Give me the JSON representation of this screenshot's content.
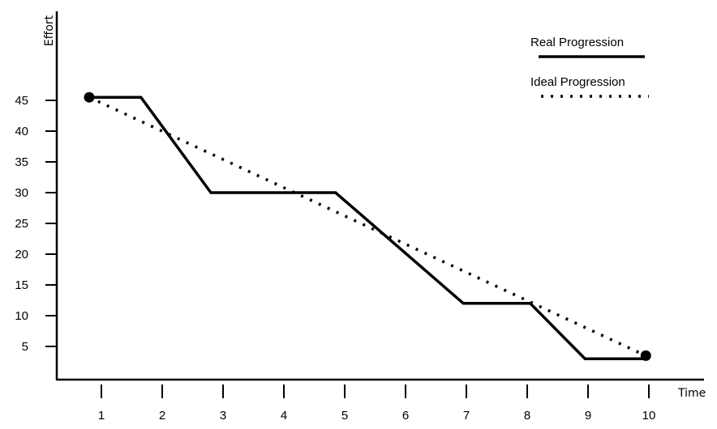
{
  "chart_data": {
    "type": "line",
    "xlabel": "Time",
    "ylabel": "Effort",
    "x_ticks": [
      1,
      2,
      3,
      4,
      5,
      6,
      7,
      8,
      9,
      10
    ],
    "y_ticks": [
      5,
      10,
      15,
      20,
      25,
      30,
      35,
      40,
      45
    ],
    "xlim": [
      0.4,
      10.9
    ],
    "ylim": [
      0,
      50
    ],
    "grid": false,
    "legend_position": "top-right",
    "series": [
      {
        "name": "Real Progression",
        "style": "solid",
        "x": [
          0.8,
          1.65,
          2.8,
          4.85,
          6.95,
          8.05,
          8.95,
          9.95
        ],
        "y": [
          45.5,
          45.5,
          30,
          30,
          12,
          12,
          3,
          3
        ]
      },
      {
        "name": "Ideal Progression",
        "style": "dotted",
        "x": [
          0.8,
          9.95
        ],
        "y": [
          45.5,
          3.5
        ]
      }
    ],
    "markers": [
      {
        "x": 0.8,
        "y": 45.5
      },
      {
        "x": 9.95,
        "y": 3.5
      }
    ],
    "colors": {
      "line": "#000000",
      "background": "#ffffff"
    }
  }
}
